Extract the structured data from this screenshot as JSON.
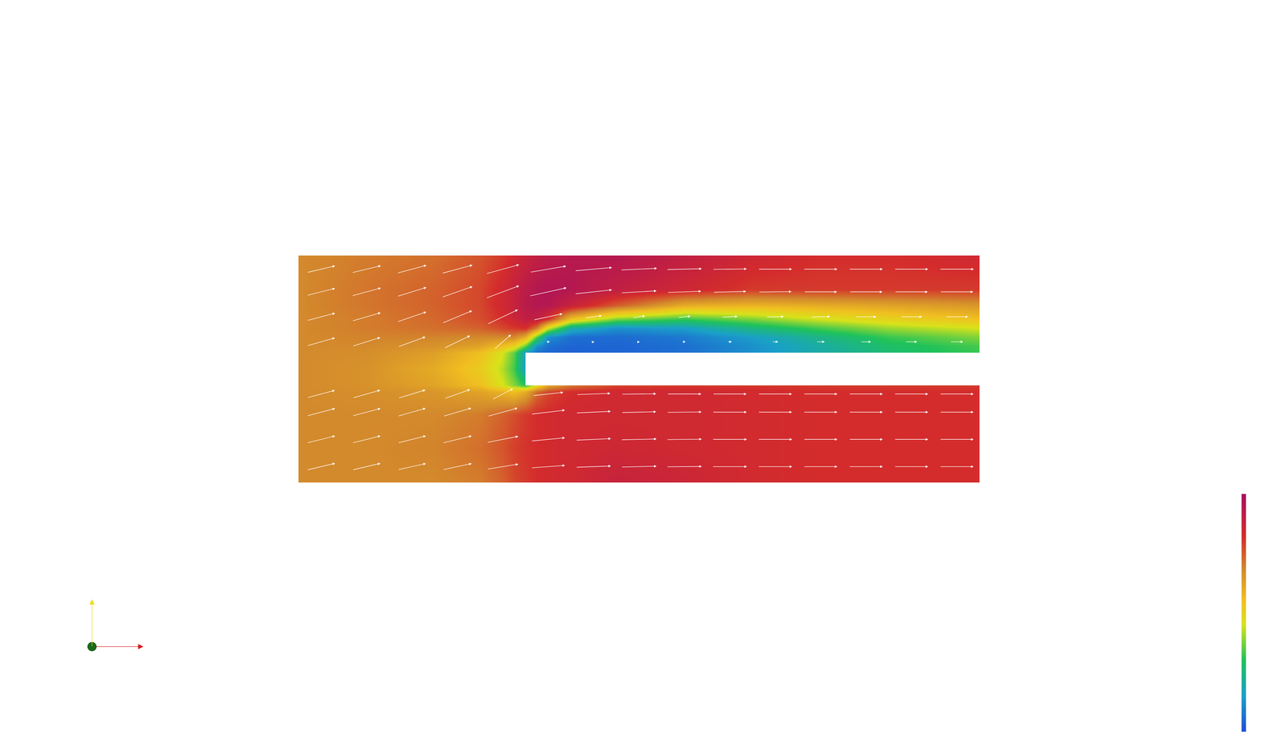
{
  "chart_data": {
    "type": "heatmap",
    "xlim": [
      0,
      30
    ],
    "ylim": [
      0,
      10
    ],
    "zlim": [
      0,
      1
    ],
    "tick_labels": false,
    "grid": false,
    "x": [
      0,
      3,
      6,
      8,
      9,
      9.5,
      10,
      10.5,
      11,
      12,
      14,
      17,
      20,
      23,
      26,
      30
    ],
    "y": [
      0,
      1.5,
      3,
      4.0,
      4.3,
      5.0,
      5.7,
      6.0,
      6.4,
      6.8,
      7.2,
      7.8,
      8.5,
      10
    ],
    "z": [
      [
        0.68,
        0.68,
        0.68,
        0.7,
        0.74,
        0.78,
        0.8,
        0.82,
        0.83,
        0.84,
        0.88,
        0.86,
        0.83,
        0.82,
        0.82,
        0.82
      ],
      [
        0.68,
        0.68,
        0.69,
        0.72,
        0.76,
        0.79,
        0.81,
        0.82,
        0.83,
        0.84,
        0.85,
        0.84,
        0.83,
        0.82,
        0.82,
        0.82
      ],
      [
        0.68,
        0.68,
        0.68,
        0.7,
        0.74,
        0.77,
        0.8,
        0.82,
        0.83,
        0.84,
        0.84,
        0.84,
        0.83,
        0.82,
        0.82,
        0.82
      ],
      [
        0.68,
        0.67,
        0.65,
        0.62,
        0.58,
        0.55,
        0.6,
        0.72,
        0.78,
        0.82,
        0.84,
        0.84,
        0.83,
        0.82,
        0.82,
        0.82
      ],
      [
        0.68,
        0.66,
        0.62,
        0.55,
        0.45,
        0.38,
        0.3,
        0.45,
        0.6,
        0.7,
        0.78,
        0.8,
        0.8,
        0.8,
        0.8,
        0.8
      ],
      [
        0.68,
        0.66,
        0.6,
        0.52,
        0.42,
        0.33,
        0.15,
        null,
        null,
        null,
        null,
        null,
        null,
        null,
        null,
        null
      ],
      [
        0.68,
        0.67,
        0.63,
        0.55,
        0.45,
        0.35,
        0.15,
        0.06,
        0.04,
        0.03,
        0.04,
        0.06,
        0.12,
        0.2,
        0.27,
        0.32
      ],
      [
        0.68,
        0.68,
        0.66,
        0.62,
        0.55,
        0.5,
        0.35,
        0.12,
        0.06,
        0.04,
        0.04,
        0.06,
        0.12,
        0.2,
        0.28,
        0.33
      ],
      [
        0.68,
        0.69,
        0.69,
        0.68,
        0.68,
        0.68,
        0.6,
        0.35,
        0.12,
        0.06,
        0.05,
        0.08,
        0.15,
        0.24,
        0.32,
        0.38
      ],
      [
        0.68,
        0.7,
        0.72,
        0.74,
        0.78,
        0.8,
        0.82,
        0.7,
        0.45,
        0.2,
        0.12,
        0.15,
        0.25,
        0.33,
        0.4,
        0.45
      ],
      [
        0.68,
        0.7,
        0.73,
        0.77,
        0.82,
        0.86,
        0.9,
        0.9,
        0.82,
        0.55,
        0.38,
        0.32,
        0.38,
        0.45,
        0.5,
        0.55
      ],
      [
        0.68,
        0.71,
        0.74,
        0.78,
        0.84,
        0.88,
        0.93,
        0.95,
        0.95,
        0.88,
        0.75,
        0.6,
        0.58,
        0.6,
        0.62,
        0.65
      ],
      [
        0.68,
        0.71,
        0.74,
        0.78,
        0.84,
        0.88,
        0.92,
        0.95,
        0.96,
        0.95,
        0.9,
        0.85,
        0.8,
        0.8,
        0.8,
        0.8
      ],
      [
        0.68,
        0.7,
        0.72,
        0.76,
        0.8,
        0.84,
        0.87,
        0.9,
        0.92,
        0.94,
        0.95,
        0.9,
        0.85,
        0.82,
        0.82,
        0.84
      ]
    ],
    "obstacle": {
      "x": [
        10,
        30
      ],
      "y": [
        4.28,
        5.72
      ]
    },
    "vectors": {
      "color": "#ffffff",
      "x": [
        1,
        3,
        5,
        7,
        9,
        11,
        13,
        15,
        17,
        19,
        21,
        23,
        25,
        27,
        29
      ],
      "y": [
        0.7,
        1.9,
        3.1,
        3.9,
        6.2,
        7.3,
        8.4,
        9.4
      ],
      "u": [
        [
          0.68,
          0.68,
          0.68,
          0.7,
          0.76,
          0.82,
          0.85,
          0.86,
          0.85,
          0.84,
          0.83,
          0.82,
          0.82,
          0.82,
          0.82
        ],
        [
          0.68,
          0.68,
          0.68,
          0.7,
          0.76,
          0.82,
          0.85,
          0.86,
          0.85,
          0.84,
          0.83,
          0.82,
          0.82,
          0.82,
          0.82
        ],
        [
          0.68,
          0.68,
          0.67,
          0.68,
          0.72,
          0.82,
          0.84,
          0.84,
          0.84,
          0.83,
          0.82,
          0.82,
          0.82,
          0.82,
          0.82
        ],
        [
          0.67,
          0.67,
          0.66,
          0.62,
          0.5,
          0.74,
          0.82,
          0.84,
          0.83,
          0.82,
          0.82,
          0.82,
          0.82,
          0.82,
          0.82
        ],
        [
          0.67,
          0.67,
          0.66,
          0.62,
          0.4,
          0.08,
          0.04,
          0.04,
          0.06,
          0.1,
          0.15,
          0.2,
          0.25,
          0.28,
          0.31
        ],
        [
          0.68,
          0.69,
          0.7,
          0.72,
          0.74,
          0.7,
          0.4,
          0.3,
          0.3,
          0.38,
          0.42,
          0.46,
          0.5,
          0.52,
          0.55
        ],
        [
          0.68,
          0.7,
          0.71,
          0.74,
          0.8,
          0.9,
          0.9,
          0.86,
          0.82,
          0.8,
          0.8,
          0.8,
          0.8,
          0.8,
          0.8
        ],
        [
          0.68,
          0.7,
          0.71,
          0.74,
          0.8,
          0.88,
          0.9,
          0.88,
          0.85,
          0.83,
          0.82,
          0.82,
          0.82,
          0.82,
          0.83
        ]
      ],
      "v": [
        [
          0.16,
          0.16,
          0.15,
          0.15,
          0.12,
          0.06,
          0.03,
          0.02,
          0.01,
          0,
          0,
          0,
          0,
          0,
          0
        ],
        [
          0.17,
          0.17,
          0.17,
          0.17,
          0.15,
          0.08,
          0.04,
          0.02,
          0.01,
          0,
          0,
          0,
          0,
          0,
          0
        ],
        [
          0.18,
          0.18,
          0.19,
          0.2,
          0.2,
          0.1,
          0.04,
          0.02,
          0.01,
          0,
          0,
          0,
          0,
          0,
          0
        ],
        [
          0.18,
          0.19,
          0.2,
          0.22,
          0.26,
          0.08,
          0.03,
          0.01,
          0,
          0,
          0,
          0,
          0,
          0,
          0
        ],
        [
          0.19,
          0.21,
          0.24,
          0.3,
          0.35,
          0.02,
          0.01,
          0.01,
          0,
          0,
          0,
          0,
          0,
          0,
          0
        ],
        [
          0.18,
          0.2,
          0.24,
          0.3,
          0.35,
          0.15,
          0.06,
          0.04,
          0.03,
          0.02,
          0.01,
          0.01,
          0,
          0,
          0
        ],
        [
          0.17,
          0.19,
          0.22,
          0.26,
          0.3,
          0.2,
          0.1,
          0.05,
          0.03,
          0.02,
          0.01,
          0,
          0,
          0,
          0
        ],
        [
          0.16,
          0.17,
          0.19,
          0.2,
          0.22,
          0.15,
          0.08,
          0.04,
          0.02,
          0.01,
          0,
          0,
          0,
          0,
          0
        ]
      ]
    }
  }
}
